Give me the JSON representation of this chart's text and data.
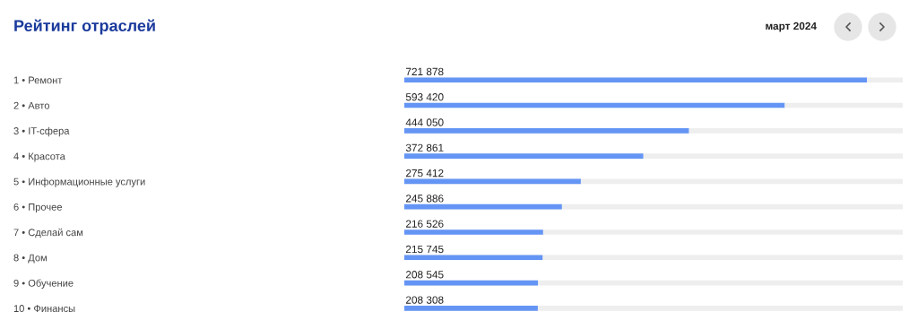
{
  "chart_data": {
    "type": "bar",
    "orientation": "horizontal",
    "title": "Рейтинг отраслей",
    "subtitle": "март 2024",
    "categories": [
      "1 • Ремонт",
      "2 • Авто",
      "3 • IT-сфера",
      "4 • Красота",
      "5 • Информационные услуги",
      "6 • Прочее",
      "7 • Сделай сам",
      "8 • Дом",
      "9 • Обучение",
      "10 • Финансы"
    ],
    "values": [
      721878,
      593420,
      444050,
      372861,
      275412,
      245886,
      216526,
      215745,
      208545,
      208308
    ],
    "value_labels": [
      "721 878",
      "593 420",
      "444 050",
      "372 861",
      "275 412",
      "245 886",
      "216 526",
      "215 745",
      "208 545",
      "208 308"
    ],
    "color": "#6495f5",
    "tick_labels": "y",
    "grid": false,
    "legend": false
  }
}
